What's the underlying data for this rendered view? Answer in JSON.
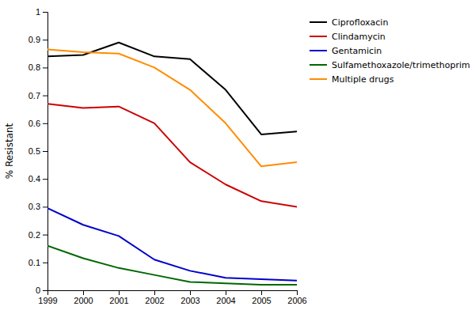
{
  "chart_data": {
    "type": "line",
    "ylabel": "% Resistant",
    "x": [
      1999,
      2000,
      2001,
      2002,
      2003,
      2004,
      2005,
      2006
    ],
    "series": [
      {
        "name": "Ciprofloxacin",
        "color": "#000000",
        "values": [
          0.84,
          0.845,
          0.89,
          0.84,
          0.83,
          0.72,
          0.56,
          0.57
        ]
      },
      {
        "name": "Clindamycin",
        "color": "#cc0000",
        "values": [
          0.67,
          0.655,
          0.66,
          0.6,
          0.46,
          0.38,
          0.32,
          0.3
        ]
      },
      {
        "name": "Gentamicin",
        "color": "#0000cc",
        "values": [
          0.295,
          0.235,
          0.195,
          0.11,
          0.07,
          0.045,
          0.04,
          0.035
        ]
      },
      {
        "name": "Sulfamethoxazole/trimethoprim",
        "color": "#006600",
        "values": [
          0.16,
          0.115,
          0.08,
          0.055,
          0.03,
          0.025,
          0.02,
          0.02
        ]
      },
      {
        "name": "Multiple drugs",
        "color": "#ff8c00",
        "values": [
          0.865,
          0.855,
          0.85,
          0.8,
          0.72,
          0.6,
          0.445,
          0.46
        ]
      }
    ],
    "xlim": [
      1999,
      2006
    ],
    "ylim": [
      0,
      1
    ],
    "xticks": [
      1999,
      2000,
      2001,
      2002,
      2003,
      2004,
      2005,
      2006
    ],
    "yticks": [
      0,
      0.1,
      0.2,
      0.3,
      0.4,
      0.5,
      0.6,
      0.7,
      0.8,
      0.9,
      1
    ],
    "grid": false,
    "legend": "upper right"
  }
}
